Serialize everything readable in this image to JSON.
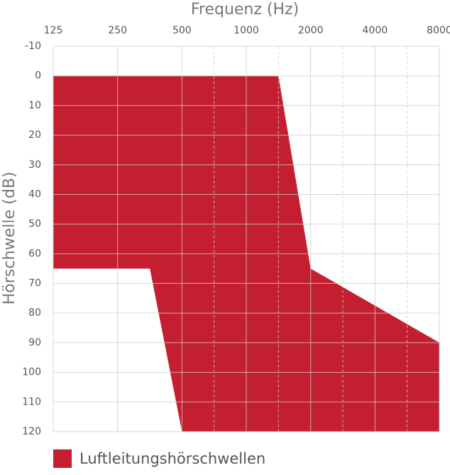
{
  "chart_data": {
    "type": "area",
    "title": "Frequenz (Hz)",
    "y_label": "Hörschwelle (dB)",
    "x_scale": "log",
    "xlim": [
      125,
      8000
    ],
    "xticks": [
      125,
      250,
      500,
      1000,
      2000,
      4000,
      8000
    ],
    "x_minor_ticks": [
      707,
      1414,
      2828,
      5657
    ],
    "ylim": [
      -10,
      120
    ],
    "y_reversed": true,
    "yticks": [
      -10,
      0,
      10,
      20,
      30,
      40,
      50,
      60,
      70,
      80,
      90,
      100,
      110,
      120
    ],
    "grid": true,
    "legend": "bottom-left",
    "series": [
      {
        "name": "Luftleitungshörschwellen",
        "color": "#c41f30",
        "x": [
          125,
          1414,
          2000,
          8000
        ],
        "values": [
          0,
          0,
          65,
          90
        ],
        "lower_x": [
          8000,
          500,
          354,
          125
        ],
        "lower_values": [
          120,
          120,
          65,
          65
        ]
      }
    ]
  }
}
